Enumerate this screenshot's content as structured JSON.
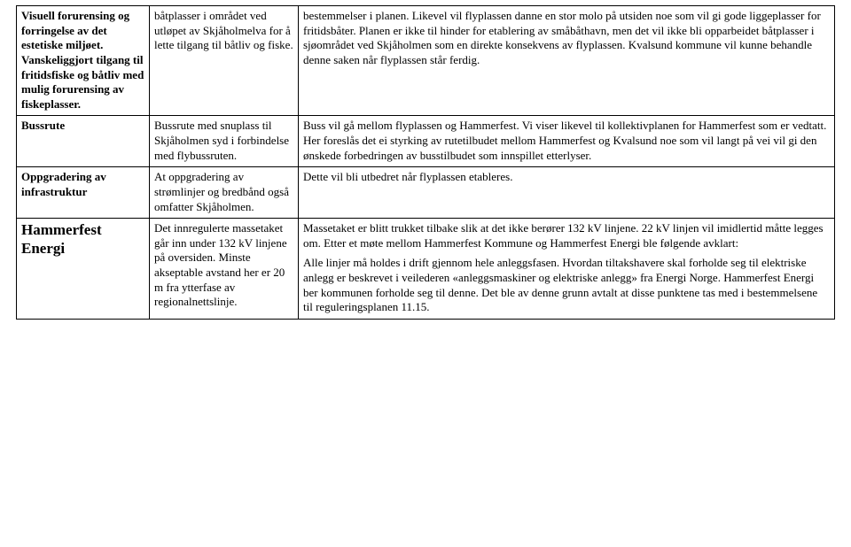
{
  "rows": [
    {
      "col1": {
        "bold": true,
        "text": "Visuell forurensing og forringelse av det estetiske miljøet. Vanskeliggjort tilgang til fritidsfiske og båtliv med mulig forurensing av fiskeplasser."
      },
      "col2": {
        "bold": false,
        "text": "båtplasser i området ved utløpet av Skjåholmelva for å lette tilgang til båtliv og fiske."
      },
      "col3": [
        "bestemmelser i planen. Likevel vil flyplassen danne en stor molo på utsiden noe som vil gi gode liggeplasser for fritidsbåter. Planen er ikke til hinder for etablering av småbåthavn, men det vil ikke bli opparbeidet båtplasser i sjøområdet ved Skjåholmen som en direkte konsekvens av flyplassen. Kvalsund kommune vil kunne behandle denne saken når flyplassen står ferdig."
      ]
    },
    {
      "col1": {
        "bold": true,
        "text": "Bussrute"
      },
      "col2": {
        "bold": false,
        "text": "Bussrute med snuplass til Skjåholmen syd i forbindelse med flybussruten."
      },
      "col3": [
        "Buss vil gå mellom flyplassen og Hammerfest. Vi viser likevel til kollektivplanen for Hammerfest som er vedtatt. Her foreslås det ei styrking av rutetilbudet mellom Hammerfest og Kvalsund noe som vil langt på vei vil gi den ønskede forbedringen av busstilbudet som innspillet etterlyser."
      ]
    },
    {
      "col1": {
        "bold": true,
        "text": "Oppgradering av infrastruktur"
      },
      "col2": {
        "bold": false,
        "text": "At oppgradering av strømlinjer og bredbånd også omfatter Skjåholmen."
      },
      "col3": [
        "Dette vil bli utbedret når flyplassen etableres."
      ]
    },
    {
      "col1": {
        "bold": true,
        "big": true,
        "text": "Hammerfest Energi"
      },
      "col2": {
        "bold": false,
        "text": "Det innregulerte massetaket går inn under 132 kV linjene på oversiden. Minste akseptable avstand her er 20 m fra ytterfase av regionalnettslinje."
      },
      "col3": [
        "Massetaket er blitt trukket tilbake slik at det ikke berører 132 kV linjene. 22 kV linjen vil imidlertid måtte legges om. Etter et møte mellom Hammerfest Kommune og Hammerfest Energi ble følgende avklart:",
        "Alle linjer må holdes i drift gjennom hele anleggsfasen. Hvordan tiltakshavere skal forholde seg til elektriske anlegg er beskrevet i veilederen «anleggsmaskiner og elektriske anlegg» fra Energi Norge. Hammerfest Energi ber kommunen forholde seg til denne.  Det ble av denne grunn avtalt at disse punktene tas med i bestemmelsene til reguleringsplanen 11.15."
      ]
    }
  ]
}
